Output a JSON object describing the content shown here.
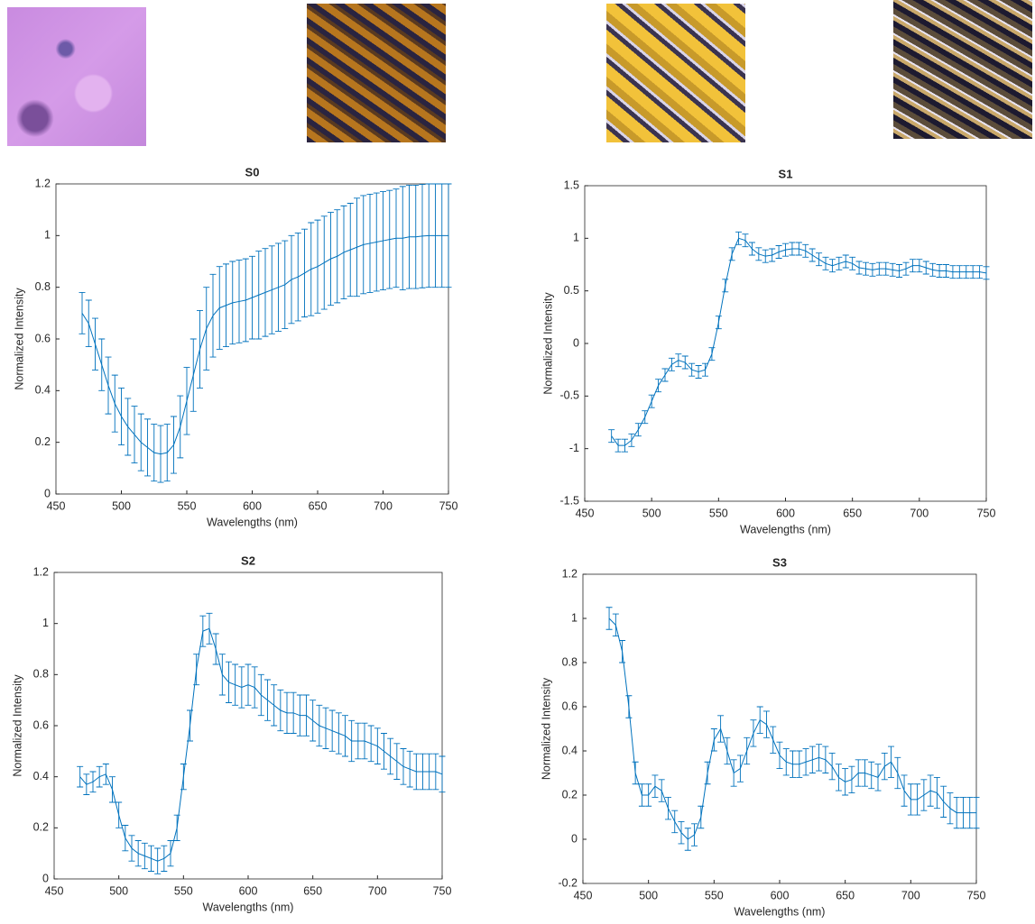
{
  "chart_data": [
    {
      "type": "line",
      "title": "S0",
      "xlabel": "Wavelengths (nm)",
      "ylabel": "Normalized Intensity",
      "color": "#0072bd",
      "xlim": [
        450,
        750
      ],
      "xticks": [
        450,
        500,
        550,
        600,
        650,
        700,
        750
      ],
      "ylim": [
        0,
        1.2
      ],
      "yticks": [
        0,
        0.2,
        0.4,
        0.6,
        0.8,
        1,
        1.2
      ],
      "x": [
        470,
        475,
        480,
        485,
        490,
        495,
        500,
        505,
        510,
        515,
        520,
        525,
        530,
        535,
        540,
        545,
        550,
        555,
        560,
        565,
        570,
        575,
        580,
        585,
        590,
        595,
        600,
        605,
        610,
        615,
        620,
        625,
        630,
        635,
        640,
        645,
        650,
        655,
        660,
        665,
        670,
        675,
        680,
        685,
        690,
        695,
        700,
        705,
        710,
        715,
        720,
        725,
        730,
        735,
        740,
        745,
        750
      ],
      "values": [
        0.7,
        0.66,
        0.58,
        0.5,
        0.42,
        0.35,
        0.3,
        0.26,
        0.23,
        0.2,
        0.18,
        0.16,
        0.155,
        0.16,
        0.19,
        0.26,
        0.36,
        0.46,
        0.56,
        0.64,
        0.69,
        0.72,
        0.73,
        0.74,
        0.745,
        0.75,
        0.76,
        0.77,
        0.78,
        0.79,
        0.8,
        0.81,
        0.83,
        0.84,
        0.855,
        0.87,
        0.88,
        0.895,
        0.91,
        0.92,
        0.935,
        0.945,
        0.955,
        0.965,
        0.97,
        0.975,
        0.98,
        0.985,
        0.99,
        0.99,
        0.995,
        0.995,
        0.998,
        1.0,
        1.0,
        1.0,
        1.0
      ],
      "errors": [
        0.08,
        0.09,
        0.1,
        0.1,
        0.11,
        0.11,
        0.11,
        0.11,
        0.11,
        0.11,
        0.11,
        0.11,
        0.11,
        0.11,
        0.11,
        0.12,
        0.13,
        0.14,
        0.15,
        0.16,
        0.16,
        0.16,
        0.16,
        0.16,
        0.16,
        0.16,
        0.16,
        0.17,
        0.17,
        0.17,
        0.17,
        0.17,
        0.17,
        0.17,
        0.17,
        0.18,
        0.18,
        0.18,
        0.18,
        0.18,
        0.18,
        0.18,
        0.19,
        0.19,
        0.19,
        0.19,
        0.19,
        0.19,
        0.19,
        0.2,
        0.2,
        0.2,
        0.2,
        0.2,
        0.2,
        0.2,
        0.2
      ]
    },
    {
      "type": "line",
      "title": "S1",
      "xlabel": "Wavelengths (nm)",
      "ylabel": "Normalized Intensity",
      "color": "#0072bd",
      "xlim": [
        450,
        750
      ],
      "xticks": [
        450,
        500,
        550,
        600,
        650,
        700,
        750
      ],
      "ylim": [
        -1.5,
        1.5
      ],
      "yticks": [
        -1.5,
        -1,
        -0.5,
        0,
        0.5,
        1,
        1.5
      ],
      "x": [
        470,
        475,
        480,
        485,
        490,
        495,
        500,
        505,
        510,
        515,
        520,
        525,
        530,
        535,
        540,
        545,
        550,
        555,
        560,
        565,
        570,
        575,
        580,
        585,
        590,
        595,
        600,
        605,
        610,
        615,
        620,
        625,
        630,
        635,
        640,
        645,
        650,
        655,
        660,
        665,
        670,
        675,
        680,
        685,
        690,
        695,
        700,
        705,
        710,
        715,
        720,
        725,
        730,
        735,
        740,
        745,
        750
      ],
      "values": [
        -0.88,
        -0.97,
        -0.97,
        -0.92,
        -0.82,
        -0.7,
        -0.55,
        -0.4,
        -0.3,
        -0.2,
        -0.16,
        -0.18,
        -0.25,
        -0.27,
        -0.25,
        -0.1,
        0.2,
        0.55,
        0.85,
        1.0,
        0.98,
        0.9,
        0.85,
        0.83,
        0.84,
        0.87,
        0.89,
        0.9,
        0.9,
        0.88,
        0.84,
        0.8,
        0.76,
        0.74,
        0.76,
        0.78,
        0.76,
        0.72,
        0.71,
        0.7,
        0.71,
        0.71,
        0.7,
        0.69,
        0.71,
        0.74,
        0.74,
        0.72,
        0.7,
        0.69,
        0.69,
        0.68,
        0.68,
        0.68,
        0.68,
        0.68,
        0.67
      ],
      "errors": [
        0.06,
        0.06,
        0.06,
        0.06,
        0.06,
        0.06,
        0.06,
        0.06,
        0.06,
        0.06,
        0.06,
        0.06,
        0.06,
        0.06,
        0.06,
        0.06,
        0.06,
        0.06,
        0.06,
        0.06,
        0.06,
        0.06,
        0.06,
        0.06,
        0.06,
        0.06,
        0.06,
        0.06,
        0.06,
        0.06,
        0.06,
        0.06,
        0.06,
        0.06,
        0.06,
        0.06,
        0.06,
        0.06,
        0.06,
        0.06,
        0.06,
        0.06,
        0.06,
        0.06,
        0.06,
        0.06,
        0.06,
        0.06,
        0.06,
        0.06,
        0.06,
        0.06,
        0.06,
        0.06,
        0.06,
        0.06,
        0.06
      ]
    },
    {
      "type": "line",
      "title": "S2",
      "xlabel": "Wavelengths (nm)",
      "ylabel": "Normalized Intensity",
      "color": "#0072bd",
      "xlim": [
        450,
        750
      ],
      "xticks": [
        450,
        500,
        550,
        600,
        650,
        700,
        750
      ],
      "ylim": [
        0,
        1.2
      ],
      "yticks": [
        0,
        0.2,
        0.4,
        0.6,
        0.8,
        1,
        1.2
      ],
      "x": [
        470,
        475,
        480,
        485,
        490,
        495,
        500,
        505,
        510,
        515,
        520,
        525,
        530,
        535,
        540,
        545,
        550,
        555,
        560,
        565,
        570,
        575,
        580,
        585,
        590,
        595,
        600,
        605,
        610,
        615,
        620,
        625,
        630,
        635,
        640,
        645,
        650,
        655,
        660,
        665,
        670,
        675,
        680,
        685,
        690,
        695,
        700,
        705,
        710,
        715,
        720,
        725,
        730,
        735,
        740,
        745,
        750
      ],
      "values": [
        0.4,
        0.37,
        0.38,
        0.4,
        0.41,
        0.35,
        0.25,
        0.16,
        0.12,
        0.1,
        0.09,
        0.08,
        0.07,
        0.08,
        0.1,
        0.2,
        0.4,
        0.6,
        0.82,
        0.97,
        0.98,
        0.9,
        0.8,
        0.77,
        0.76,
        0.75,
        0.76,
        0.75,
        0.72,
        0.7,
        0.68,
        0.66,
        0.65,
        0.65,
        0.64,
        0.64,
        0.62,
        0.6,
        0.59,
        0.58,
        0.57,
        0.56,
        0.54,
        0.54,
        0.54,
        0.53,
        0.52,
        0.5,
        0.48,
        0.46,
        0.44,
        0.43,
        0.42,
        0.42,
        0.42,
        0.42,
        0.41
      ],
      "errors": [
        0.04,
        0.04,
        0.04,
        0.04,
        0.04,
        0.05,
        0.05,
        0.05,
        0.05,
        0.05,
        0.05,
        0.05,
        0.05,
        0.05,
        0.05,
        0.05,
        0.05,
        0.06,
        0.06,
        0.06,
        0.06,
        0.06,
        0.08,
        0.08,
        0.08,
        0.08,
        0.08,
        0.08,
        0.08,
        0.08,
        0.08,
        0.08,
        0.08,
        0.08,
        0.08,
        0.08,
        0.08,
        0.08,
        0.08,
        0.08,
        0.08,
        0.08,
        0.08,
        0.07,
        0.07,
        0.07,
        0.07,
        0.07,
        0.07,
        0.07,
        0.07,
        0.07,
        0.07,
        0.07,
        0.07,
        0.07,
        0.07
      ]
    },
    {
      "type": "line",
      "title": "S3",
      "xlabel": "Wavelengths (nm)",
      "ylabel": "Normalized Intensity",
      "color": "#0072bd",
      "xlim": [
        450,
        750
      ],
      "xticks": [
        450,
        500,
        550,
        600,
        650,
        700,
        750
      ],
      "ylim": [
        -0.2,
        1.2
      ],
      "yticks": [
        -0.2,
        0,
        0.2,
        0.4,
        0.6,
        0.8,
        1,
        1.2
      ],
      "x": [
        470,
        475,
        480,
        485,
        490,
        495,
        500,
        505,
        510,
        515,
        520,
        525,
        530,
        535,
        540,
        545,
        550,
        555,
        560,
        565,
        570,
        575,
        580,
        585,
        590,
        595,
        600,
        605,
        610,
        615,
        620,
        625,
        630,
        635,
        640,
        645,
        650,
        655,
        660,
        665,
        670,
        675,
        680,
        685,
        690,
        695,
        700,
        705,
        710,
        715,
        720,
        725,
        730,
        735,
        740,
        745,
        750
      ],
      "values": [
        1.0,
        0.97,
        0.85,
        0.6,
        0.3,
        0.2,
        0.2,
        0.24,
        0.22,
        0.14,
        0.08,
        0.03,
        0.0,
        0.02,
        0.1,
        0.3,
        0.45,
        0.5,
        0.4,
        0.3,
        0.32,
        0.4,
        0.48,
        0.54,
        0.52,
        0.45,
        0.38,
        0.35,
        0.34,
        0.34,
        0.35,
        0.36,
        0.37,
        0.36,
        0.33,
        0.28,
        0.26,
        0.27,
        0.3,
        0.3,
        0.29,
        0.28,
        0.33,
        0.35,
        0.3,
        0.22,
        0.18,
        0.18,
        0.2,
        0.22,
        0.21,
        0.17,
        0.14,
        0.12,
        0.12,
        0.12,
        0.12
      ],
      "errors": [
        0.05,
        0.05,
        0.05,
        0.05,
        0.05,
        0.05,
        0.05,
        0.05,
        0.05,
        0.05,
        0.05,
        0.05,
        0.05,
        0.05,
        0.05,
        0.05,
        0.05,
        0.06,
        0.06,
        0.06,
        0.06,
        0.06,
        0.06,
        0.06,
        0.06,
        0.06,
        0.06,
        0.06,
        0.06,
        0.06,
        0.06,
        0.06,
        0.06,
        0.06,
        0.06,
        0.06,
        0.06,
        0.06,
        0.06,
        0.06,
        0.06,
        0.06,
        0.06,
        0.07,
        0.07,
        0.07,
        0.07,
        0.07,
        0.07,
        0.07,
        0.07,
        0.07,
        0.07,
        0.07,
        0.07,
        0.07,
        0.07
      ]
    }
  ]
}
